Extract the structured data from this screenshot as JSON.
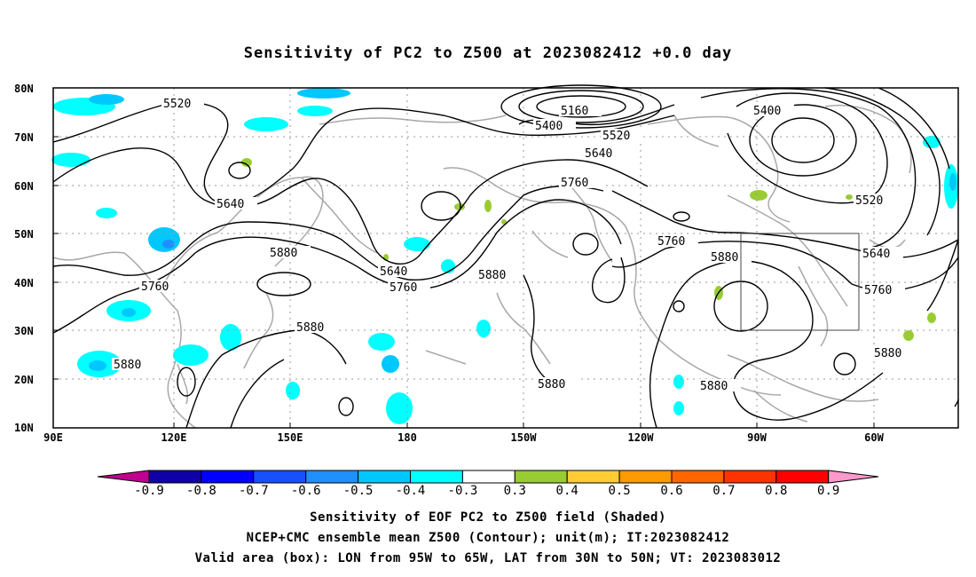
{
  "title": "Sensitivity of PC2 to Z500 at 2023082412 +0.0 day",
  "lon_labels": [
    "90E",
    "120E",
    "150E",
    "180",
    "150W",
    "120W",
    "90W",
    "60W"
  ],
  "lat_labels": [
    "80N",
    "70N",
    "60N",
    "50N",
    "40N",
    "30N",
    "20N",
    "10N"
  ],
  "contour_levels": [
    "5160",
    "5400",
    "5400",
    "5520",
    "5520",
    "5520",
    "5640",
    "5640",
    "5640",
    "5640",
    "5760",
    "5760",
    "5760",
    "5760",
    "5760",
    "5880",
    "5880",
    "5880",
    "5880",
    "5880",
    "5880",
    "5880",
    "5880"
  ],
  "colorbar": {
    "labels": [
      "-0.9",
      "-0.8",
      "-0.7",
      "-0.6",
      "-0.5",
      "-0.4",
      "-0.3",
      "0.3",
      "0.4",
      "0.5",
      "0.6",
      "0.7",
      "0.8",
      "0.9"
    ],
    "colors": [
      "#c0008e",
      "#1000a8",
      "#0000ff",
      "#1850ff",
      "#1e90ff",
      "#00c8ff",
      "#00ffff",
      "#ffffff",
      "#99cc33",
      "#ffcc33",
      "#ff9900",
      "#ff6600",
      "#ff3300",
      "#ff0000",
      "#ff99cc"
    ]
  },
  "captions": {
    "line1": "Sensitivity of EOF PC2 to Z500 field (Shaded)",
    "line2": "NCEP+CMC ensemble mean Z500 (Contour); unit(m); IT:2023082412",
    "line3": "Valid area (box): LON from 95W to 65W, LAT from 30N to 50N; VT: 2023083012"
  },
  "valid_box": {
    "lon_from": "95W",
    "lon_to": "65W",
    "lat_from": "30N",
    "lat_to": "50N"
  }
}
